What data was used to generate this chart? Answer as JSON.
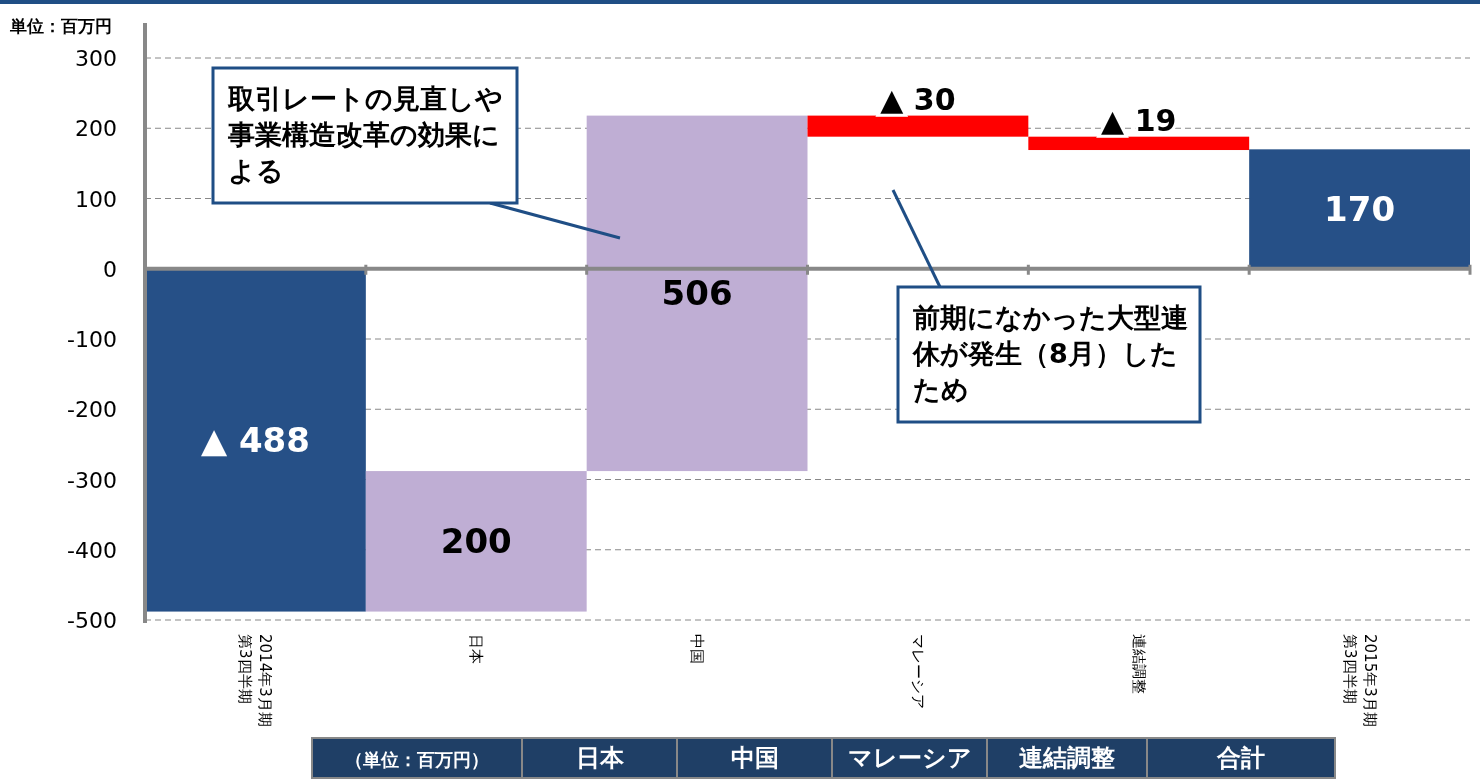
{
  "chart_data": {
    "type": "bar",
    "ylabel": "単位：百万円",
    "categories": [
      "2014年3月期第3四半期",
      "日本",
      "中国",
      "マレーシア",
      "連結調整",
      "2015年3月期第3四半期"
    ],
    "values": [
      -488,
      200,
      506,
      -30,
      -19,
      170
    ],
    "base": [
      0,
      -488,
      -288,
      218,
      188,
      0
    ],
    "colors": [
      "#265087",
      "#bfaed4",
      "#bfaed4",
      "#ff0000",
      "#ff0000",
      "#265087"
    ],
    "value_labels": [
      "▲ 488",
      "200",
      "506",
      "▲ 30",
      "▲ 19",
      "170"
    ],
    "ylim": [
      -500,
      300
    ],
    "yticks": [
      -500,
      -400,
      -300,
      -200,
      -100,
      0,
      100,
      200,
      300
    ],
    "grid": "y",
    "annotations": [
      "取引レートの見直しや事業構造改革の効果による",
      "前期になかった大型連休が発生（8月）したため",
      "（単位：百万円）",
      "日本",
      "中国",
      "マレーシア",
      "連結調整",
      "合計"
    ]
  }
}
